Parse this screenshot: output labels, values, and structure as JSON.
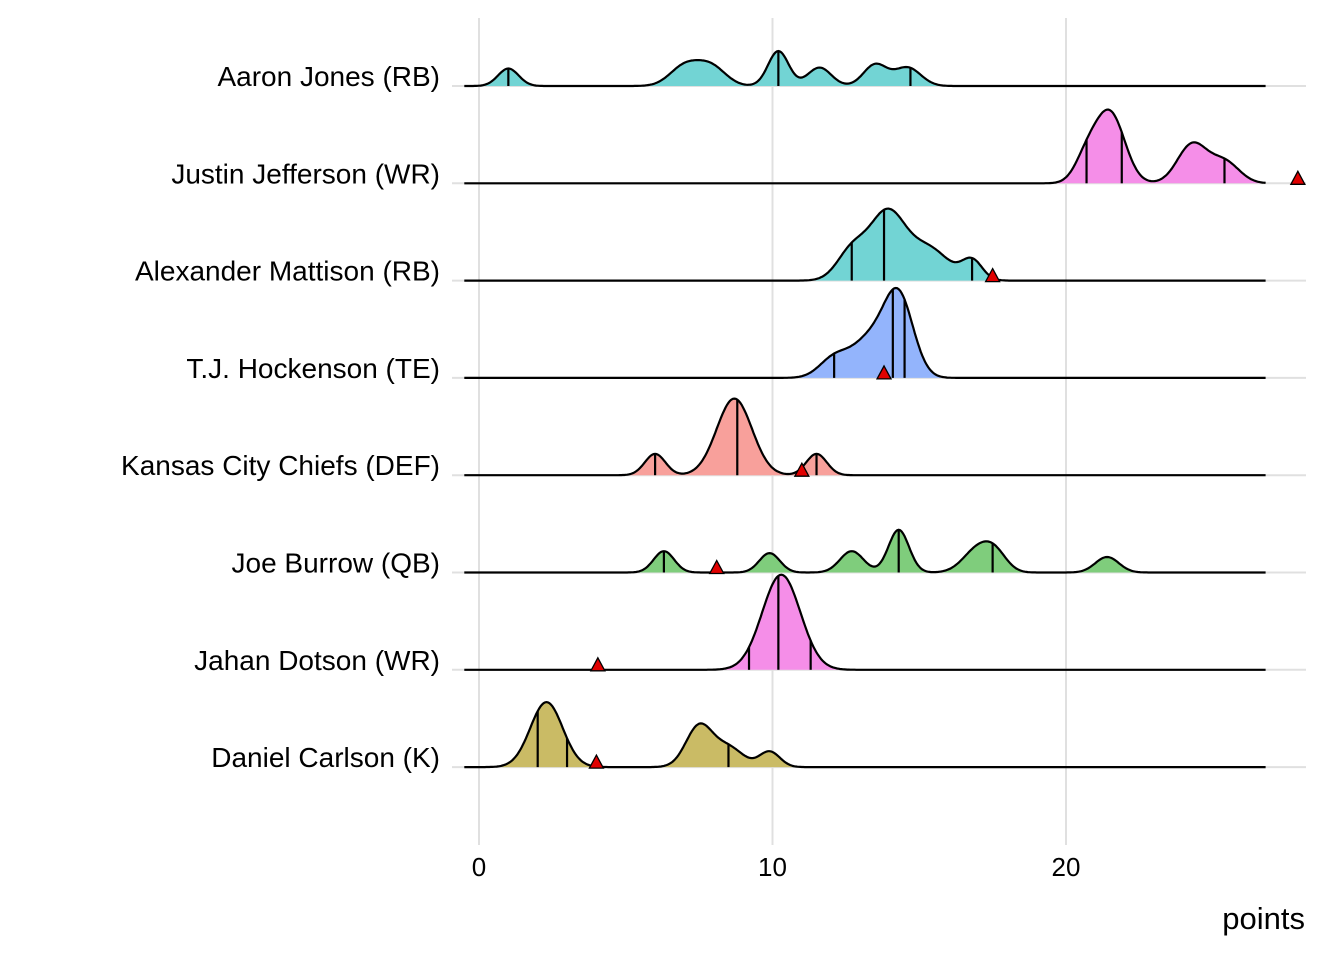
{
  "chart_data": {
    "type": "ridgeline",
    "xlabel": "points",
    "xlim": [
      -0.5,
      28
    ],
    "xticks": [
      "0",
      "10",
      "20"
    ],
    "xtick_values": [
      0,
      10,
      20
    ],
    "grid": true,
    "rows": [
      {
        "label": "Aaron Jones (RB)",
        "color": "#72d4d4",
        "quantiles": [
          1.0,
          10.2,
          14.7
        ],
        "actual": null,
        "density": [
          [
            1.0,
            0.35,
            0.18
          ],
          [
            7.0,
            0.5,
            0.2
          ],
          [
            7.9,
            0.5,
            0.2
          ],
          [
            10.2,
            0.35,
            0.36
          ],
          [
            11.6,
            0.4,
            0.19
          ],
          [
            13.5,
            0.4,
            0.22
          ],
          [
            14.6,
            0.45,
            0.19
          ]
        ]
      },
      {
        "label": "Justin Jefferson (WR)",
        "color": "#f58ee8",
        "quantiles": [
          20.7,
          21.9,
          25.4
        ],
        "actual": 27.9,
        "density": [
          [
            20.7,
            0.4,
            0.25
          ],
          [
            21.5,
            0.5,
            0.72
          ],
          [
            24.3,
            0.5,
            0.4
          ],
          [
            25.4,
            0.5,
            0.22
          ]
        ]
      },
      {
        "label": "Alexander Mattison (RB)",
        "color": "#72d4d4",
        "quantiles": [
          12.7,
          13.8,
          16.8
        ],
        "actual": 17.5,
        "density": [
          [
            12.7,
            0.5,
            0.3
          ],
          [
            13.9,
            0.6,
            0.68
          ],
          [
            15.3,
            0.7,
            0.33
          ],
          [
            16.8,
            0.35,
            0.2
          ]
        ]
      },
      {
        "label": "T.J. Hockenson (TE)",
        "color": "#93b4fc",
        "quantiles": [
          12.1,
          14.1,
          14.5
        ],
        "actual": 13.8,
        "density": [
          [
            12.1,
            0.5,
            0.2
          ],
          [
            13.3,
            0.6,
            0.38
          ],
          [
            14.3,
            0.5,
            0.82
          ]
        ]
      },
      {
        "label": "Kansas City Chiefs (DEF)",
        "color": "#f8a09b",
        "quantiles": [
          6.0,
          8.8,
          11.5
        ],
        "actual": 11.0,
        "density": [
          [
            6.0,
            0.35,
            0.22
          ],
          [
            8.7,
            0.6,
            0.79
          ],
          [
            11.5,
            0.35,
            0.22
          ]
        ]
      },
      {
        "label": "Joe Burrow (QB)",
        "color": "#7fcd7c",
        "quantiles": [
          6.3,
          14.3,
          17.5
        ],
        "actual": 8.1,
        "density": [
          [
            6.3,
            0.35,
            0.22
          ],
          [
            9.9,
            0.35,
            0.2
          ],
          [
            12.7,
            0.4,
            0.22
          ],
          [
            14.3,
            0.35,
            0.44
          ],
          [
            17.0,
            0.5,
            0.24
          ],
          [
            17.6,
            0.4,
            0.16
          ],
          [
            21.4,
            0.4,
            0.16
          ]
        ]
      },
      {
        "label": "Jahan Dotson (WR)",
        "color": "#f58ee8",
        "quantiles": [
          9.2,
          10.2,
          11.3
        ],
        "actual": 4.05,
        "density": [
          [
            10.3,
            0.65,
            0.98
          ]
        ]
      },
      {
        "label": "Daniel Carlson (K)",
        "color": "#cabb65",
        "quantiles": [
          2.0,
          3.0,
          8.5
        ],
        "actual": 4.0,
        "density": [
          [
            2.3,
            0.55,
            0.67
          ],
          [
            7.5,
            0.45,
            0.42
          ],
          [
            8.5,
            0.5,
            0.2
          ],
          [
            9.9,
            0.35,
            0.16
          ]
        ]
      }
    ]
  }
}
